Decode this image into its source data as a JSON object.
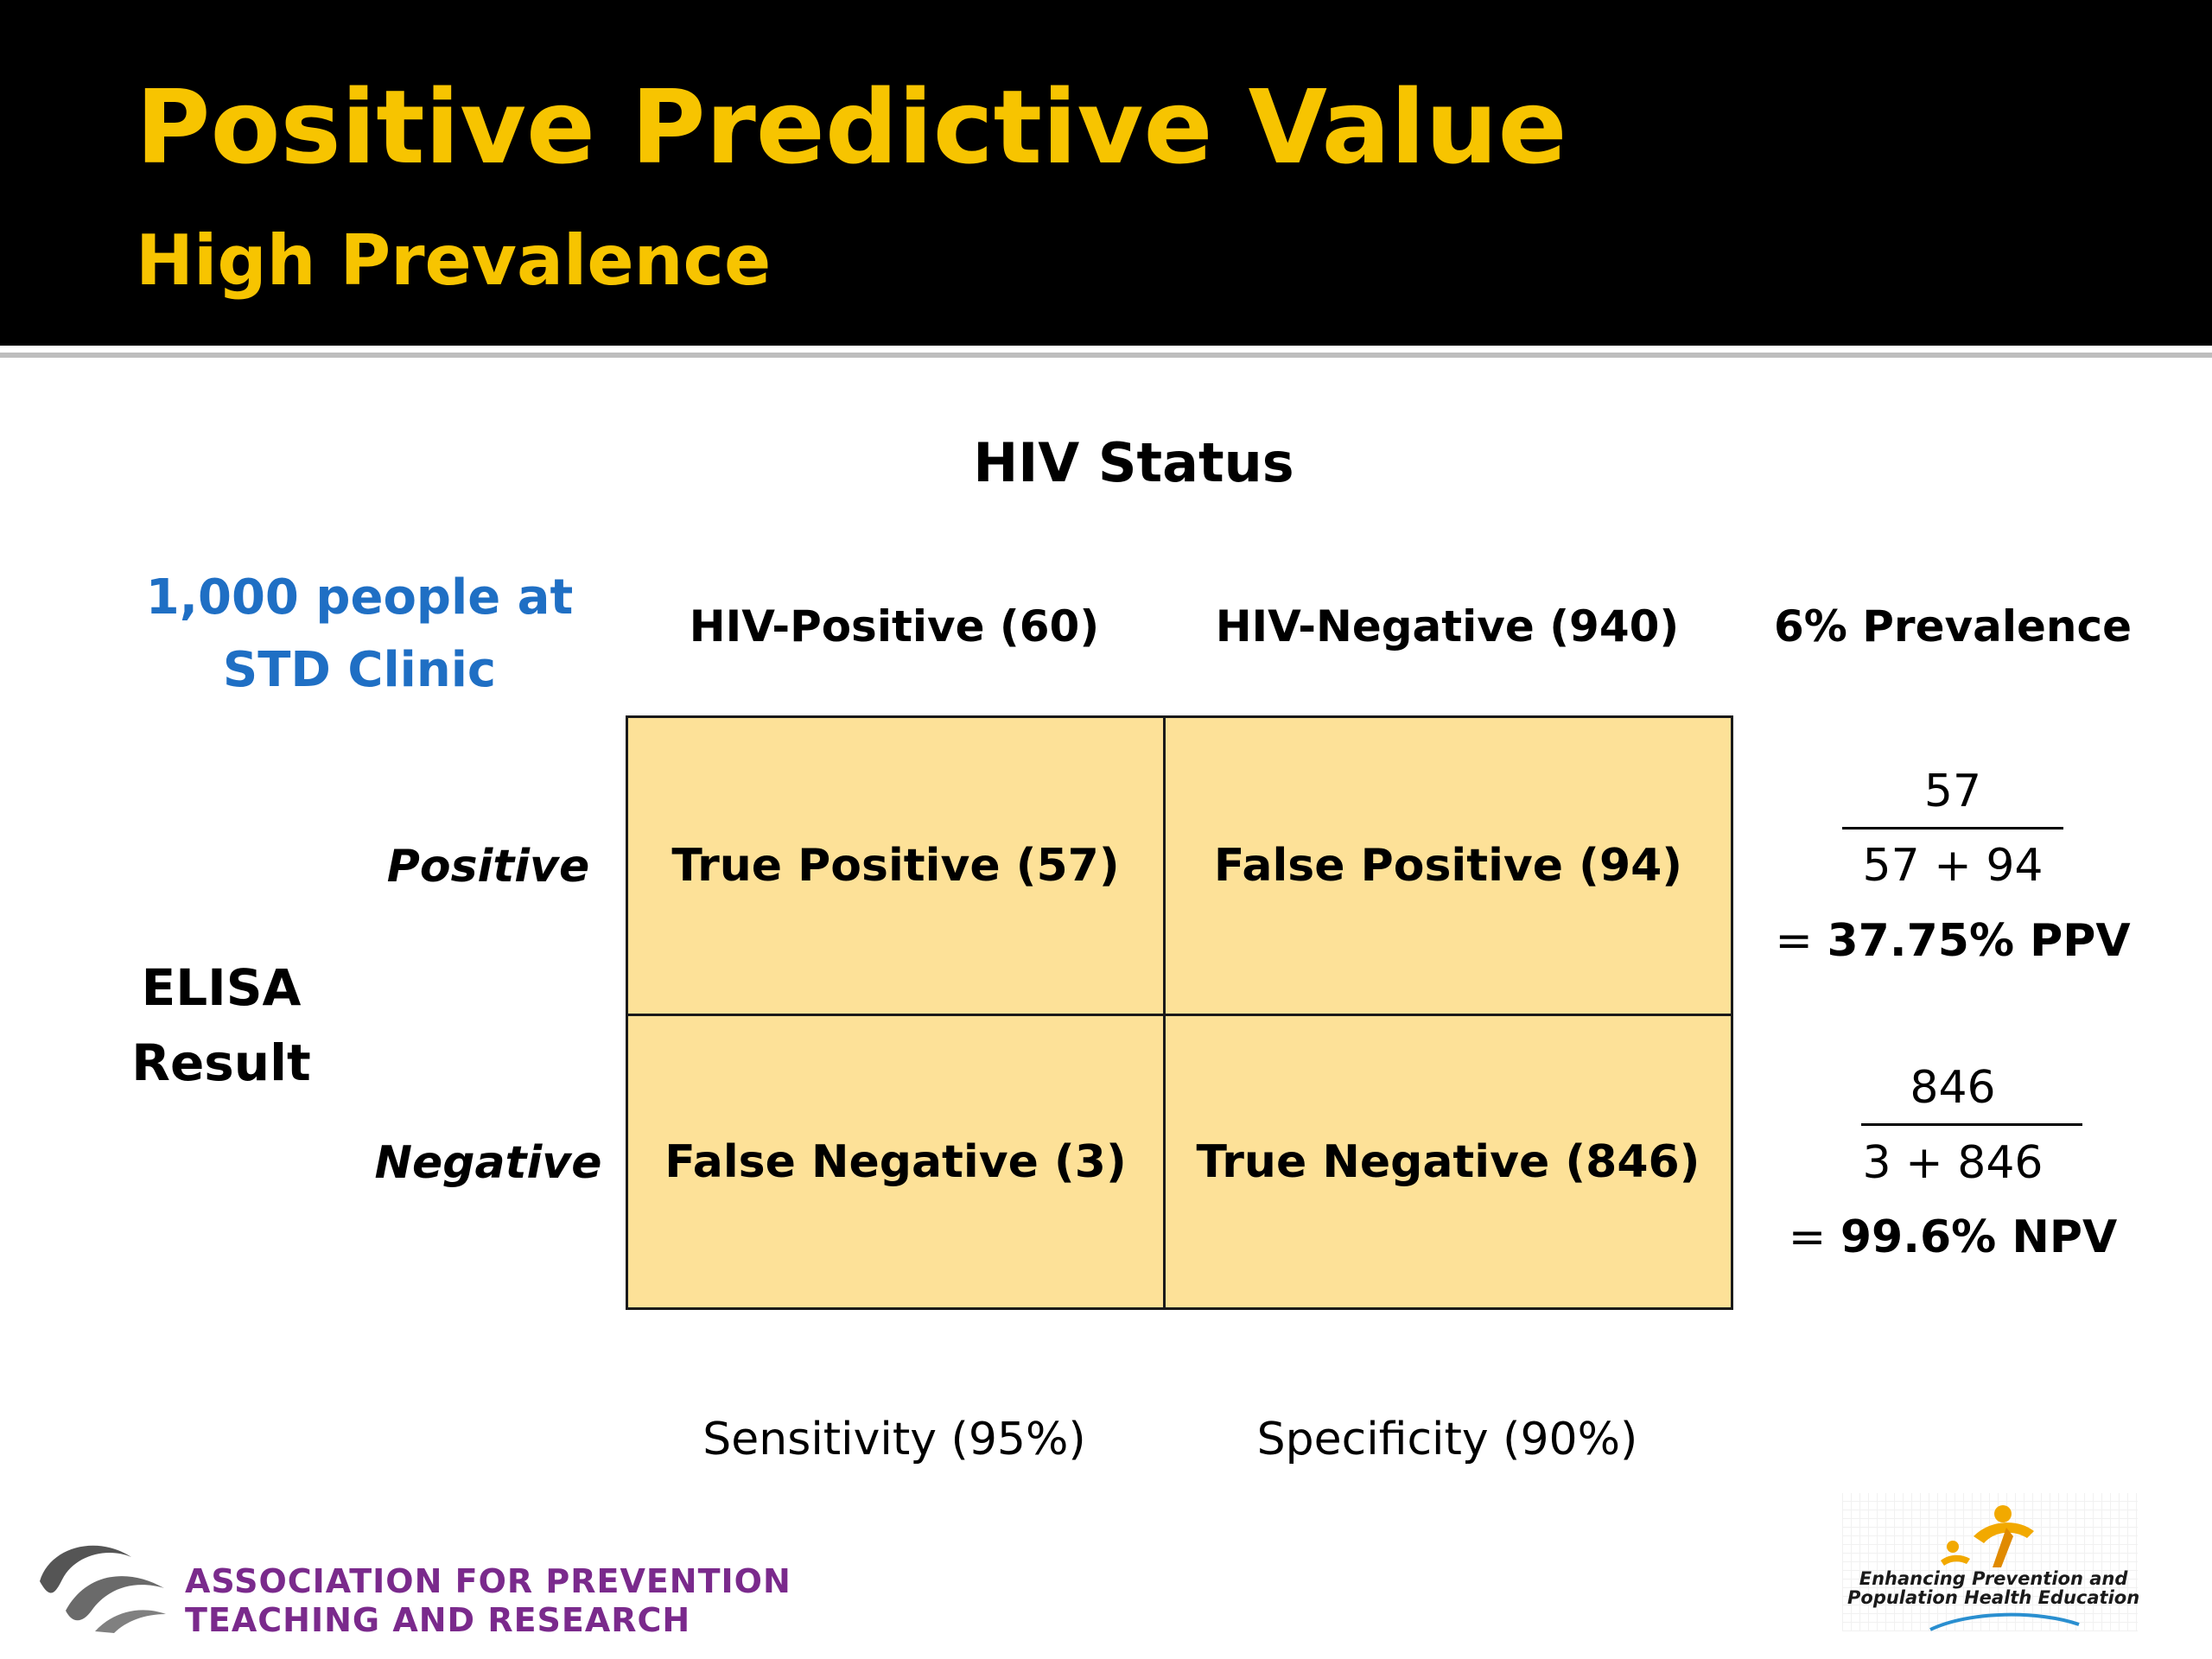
{
  "slide": {
    "title": "Positive Predictive Value",
    "subtitle": "High Prevalence"
  },
  "table": {
    "super_header": "HIV Status",
    "population_line1": "1,000 people at",
    "population_line2": "STD Clinic",
    "col_positive": "HIV-Positive (60)",
    "col_negative": "HIV-Negative (940)",
    "col_prevalence": "6% Prevalence",
    "row_title_line1": "ELISA",
    "row_title_line2": "Result",
    "row_positive": "Positive",
    "row_negative": "Negative",
    "cell_tp": "True Positive (57)",
    "cell_fp": "False Positive (94)",
    "cell_fn": "False Negative (3)",
    "cell_tn": "True Negative (846)",
    "sensitivity": "Sensitivity (95%)",
    "specificity": "Specificity (90%)"
  },
  "ppv": {
    "numerator": "57",
    "denominator": "57 + 94",
    "eq": "=",
    "result": "37.75% PPV"
  },
  "npv": {
    "numerator": "846",
    "denominator": "3 + 846",
    "eq": "=",
    "result": "99.6% NPV"
  },
  "footer": {
    "org_line1": "ASSOCIATION FOR PREVENTION",
    "org_line2": "TEACHING AND RESEARCH",
    "partner_line1": "Enhancing Prevention and",
    "partner_line2": "Population Health Education"
  },
  "colors": {
    "header_bg": "#000000",
    "title_yellow": "#f7c400",
    "cell_fill": "#fde198",
    "population_blue": "#1f6fc4",
    "org_purple": "#7a2a8c"
  }
}
